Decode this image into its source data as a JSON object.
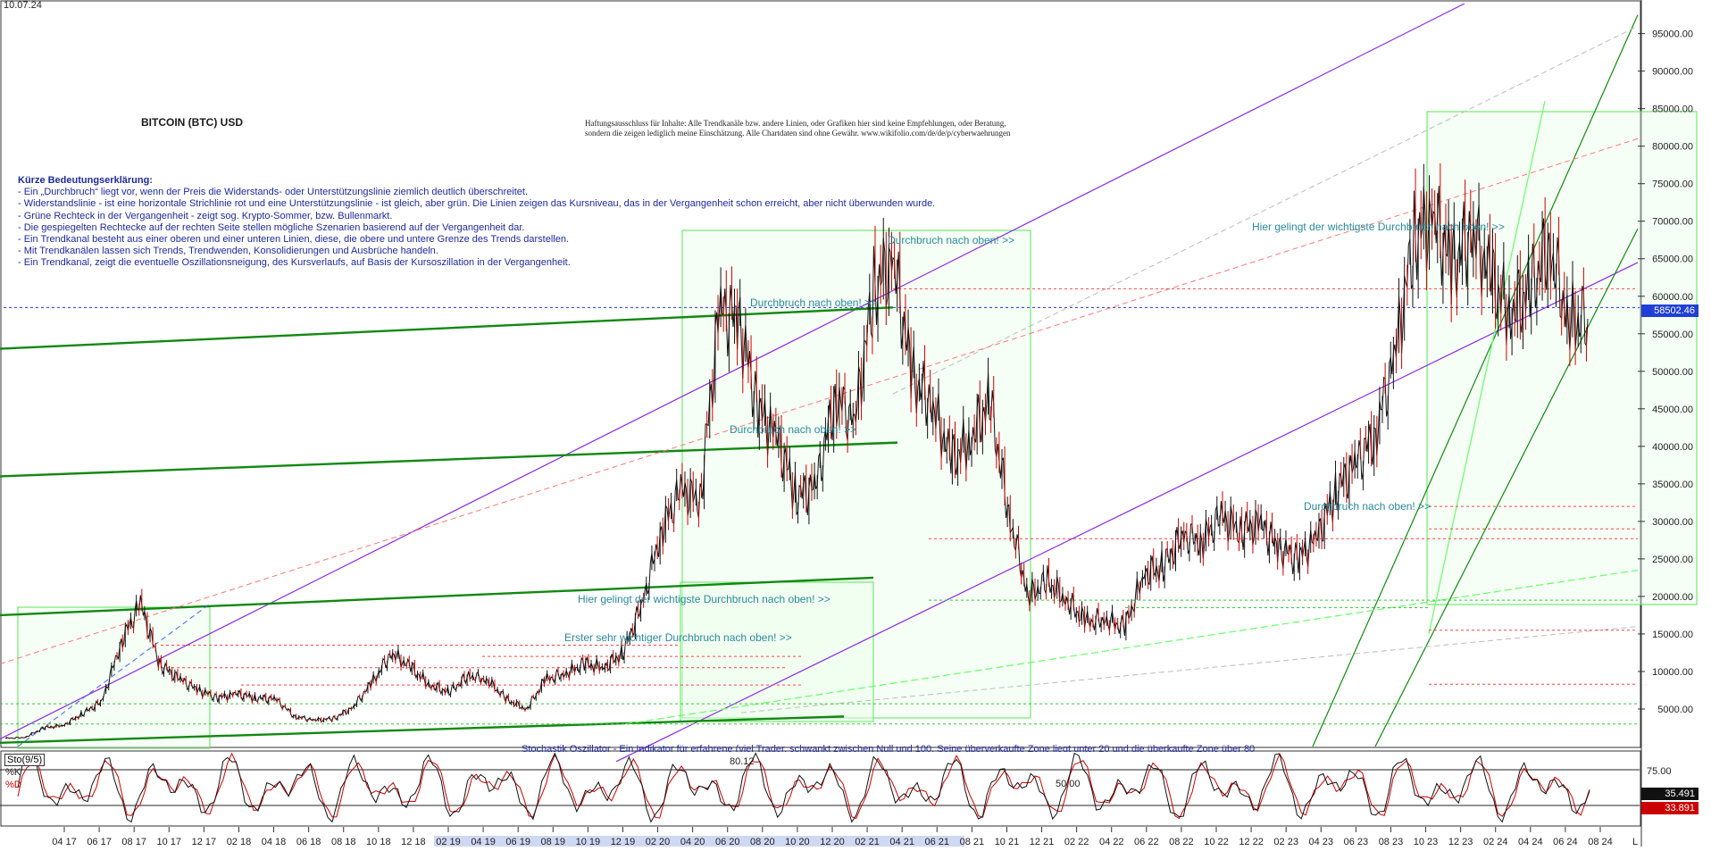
{
  "date_stamp": "10.07.24",
  "title": "BITCOIN (BTC) USD",
  "disclaimer": {
    "line1": "Haftungsausschluss für Inhalte: Alle Trendkanäle bzw. andere Linien, oder Grafiken hier sind keine Empfehlungen, oder Beratung,",
    "line2": "sondern die zeigen lediglich meine Einschätzung. Alle Chartdaten sind ohne Gewähr. www.wikifolio.com/de/de/p/cyberwaehrungen"
  },
  "legend": {
    "heading": "Kürze Bedeutungserklärung:",
    "lines": [
      "- Ein „Durchbruch“ liegt vor, wenn der Preis die Widerstands- oder Unterstützungslinie ziemlich deutlich überschreitet.",
      "- Widerstandslinie - ist eine horizontale Strichlinie rot und eine Unterstützungslinie - ist gleich, aber grün. Die Linien zeigen das Kursniveau, das in der Vergangenheit schon erreicht, aber nicht überwunden wurde.",
      "- Grüne Rechteck in der Vergangenheit - zeigt sog. Krypto-Sommer, bzw. Bullenmarkt.",
      "- Die gespiegelten Rechtecke auf der rechten Seite stellen mögliche Szenarien basierend auf der Vergangenheit dar.",
      "- Ein Trendkanal besteht aus einer oberen und einer unteren Linien, diese, die obere und untere Grenze des Trends darstellen.",
      "- Mit Trendkanälen lassen sich Trends, Trendwenden, Konsolidierungen und Ausbrüche handeln.",
      "- Ein Trendkanal, zeigt die eventuelle Oszillationsneigung, des Kursverlaufs, auf Basis der Kursoszillation in der Vergangenheit."
    ]
  },
  "annotations": {
    "a1": "Durchbruch nach oben! >>",
    "a2": "Durchbruch nach oben! >>",
    "a3": "Durchbruch nach oben! >>",
    "a4": "Hier gelingt der wichtigste Durchbruch nach oben! >>",
    "a5": "Erster sehr wichtiger Durchbruch nach oben! >>",
    "a6": "Durchbruch nach oben! >>",
    "a7": "Hier gelingt der wichtigste Durchbruch nach oben! >>",
    "osc_note": "Stochastik Oszillator - Ein Indikator für erfahrene (viel Trader, schwankt zwischen Null und 100. Seine überverkaufte Zone liegt unter 20 und die überkaufte Zone über 80",
    "osc_value_a": "80.12",
    "osc_value_b": "50.00"
  },
  "oscillator": {
    "name": "Sto(9/5)",
    "k_label": "%K",
    "d_label": "%D",
    "k_value": "35.491",
    "d_value": "33.891",
    "axis_label": "75.00"
  },
  "colors": {
    "price": "#111111",
    "bar_up": "#111111",
    "bar_down": "#cc0000",
    "trend_purple": "#8a2be2",
    "trend_green": "#1a8a1a",
    "light_green": "#66ff66",
    "resist_red": "#ff3333",
    "annotation": "#2a8a9a",
    "legend_text": "#1f2a99",
    "last_price_tag": "#1f3fd6",
    "k_tag": "#111111",
    "d_tag": "#cc0000"
  },
  "last_price_label": "58502.46",
  "chart_data": {
    "type": "line",
    "title": "BITCOIN (BTC) USD",
    "xlabel": "",
    "ylabel": "",
    "ylim": [
      0,
      99000
    ],
    "y_ticks": [
      "95000.00",
      "90000.00",
      "85000.00",
      "80000.00",
      "75000.00",
      "70000.00",
      "65000.00",
      "60000.00",
      "55000.00",
      "50000.00",
      "45000.00",
      "40000.00",
      "35000.00",
      "30000.00",
      "25000.00",
      "20000.00",
      "15000.00",
      "10000.00",
      "5000.00"
    ],
    "x_ticks": [
      "04 17",
      "06 17",
      "08 17",
      "10 17",
      "12 17",
      "02 18",
      "04 18",
      "06 18",
      "08 18",
      "10 18",
      "12 18",
      "02 19",
      "04 19",
      "06 19",
      "08 19",
      "10 19",
      "12 19",
      "02 20",
      "04 20",
      "06 20",
      "08 20",
      "10 20",
      "12 20",
      "02 21",
      "04 21",
      "06 21",
      "08 21",
      "10 21",
      "12 21",
      "02 22",
      "04 22",
      "06 22",
      "08 22",
      "10 22",
      "12 22",
      "02 23",
      "04 23",
      "06 23",
      "08 23",
      "10 23",
      "12 23",
      "02 24",
      "04 24",
      "06 24",
      "08 24"
    ],
    "x_tick_last": "L",
    "series": [
      {
        "values": [
          1100,
          1200,
          2500,
          2800,
          4400,
          6000,
          14000,
          19000,
          11000,
          9000,
          7500,
          6500,
          7000,
          6500,
          6300,
          4000,
          3500,
          3700,
          5200,
          8500,
          12500,
          10500,
          8200,
          7200,
          9500,
          8800,
          6200,
          5000,
          8900,
          9700,
          11000,
          10500,
          12500,
          19000,
          29000,
          34000,
          33000,
          58000,
          57000,
          45000,
          41000,
          33500,
          34500,
          47000,
          43000,
          61000,
          65000,
          49000,
          46000,
          38000,
          41000,
          46000,
          31000,
          20000,
          22000,
          19500,
          16500,
          17000,
          15800,
          23000,
          24000,
          28000,
          27500,
          30500,
          29000,
          29500,
          26500,
          25000,
          28000,
          34500,
          37500,
          42000,
          52000,
          68000,
          70500,
          64000,
          69000,
          62000,
          58000,
          60500,
          67000,
          56500,
          57000
        ]
      }
    ],
    "last_price": 58502.46,
    "oscillator": {
      "name": "Sto(9/5)",
      "k_last": 35.491,
      "d_last": 33.891,
      "levels": [
        80.12,
        50.0
      ]
    }
  }
}
